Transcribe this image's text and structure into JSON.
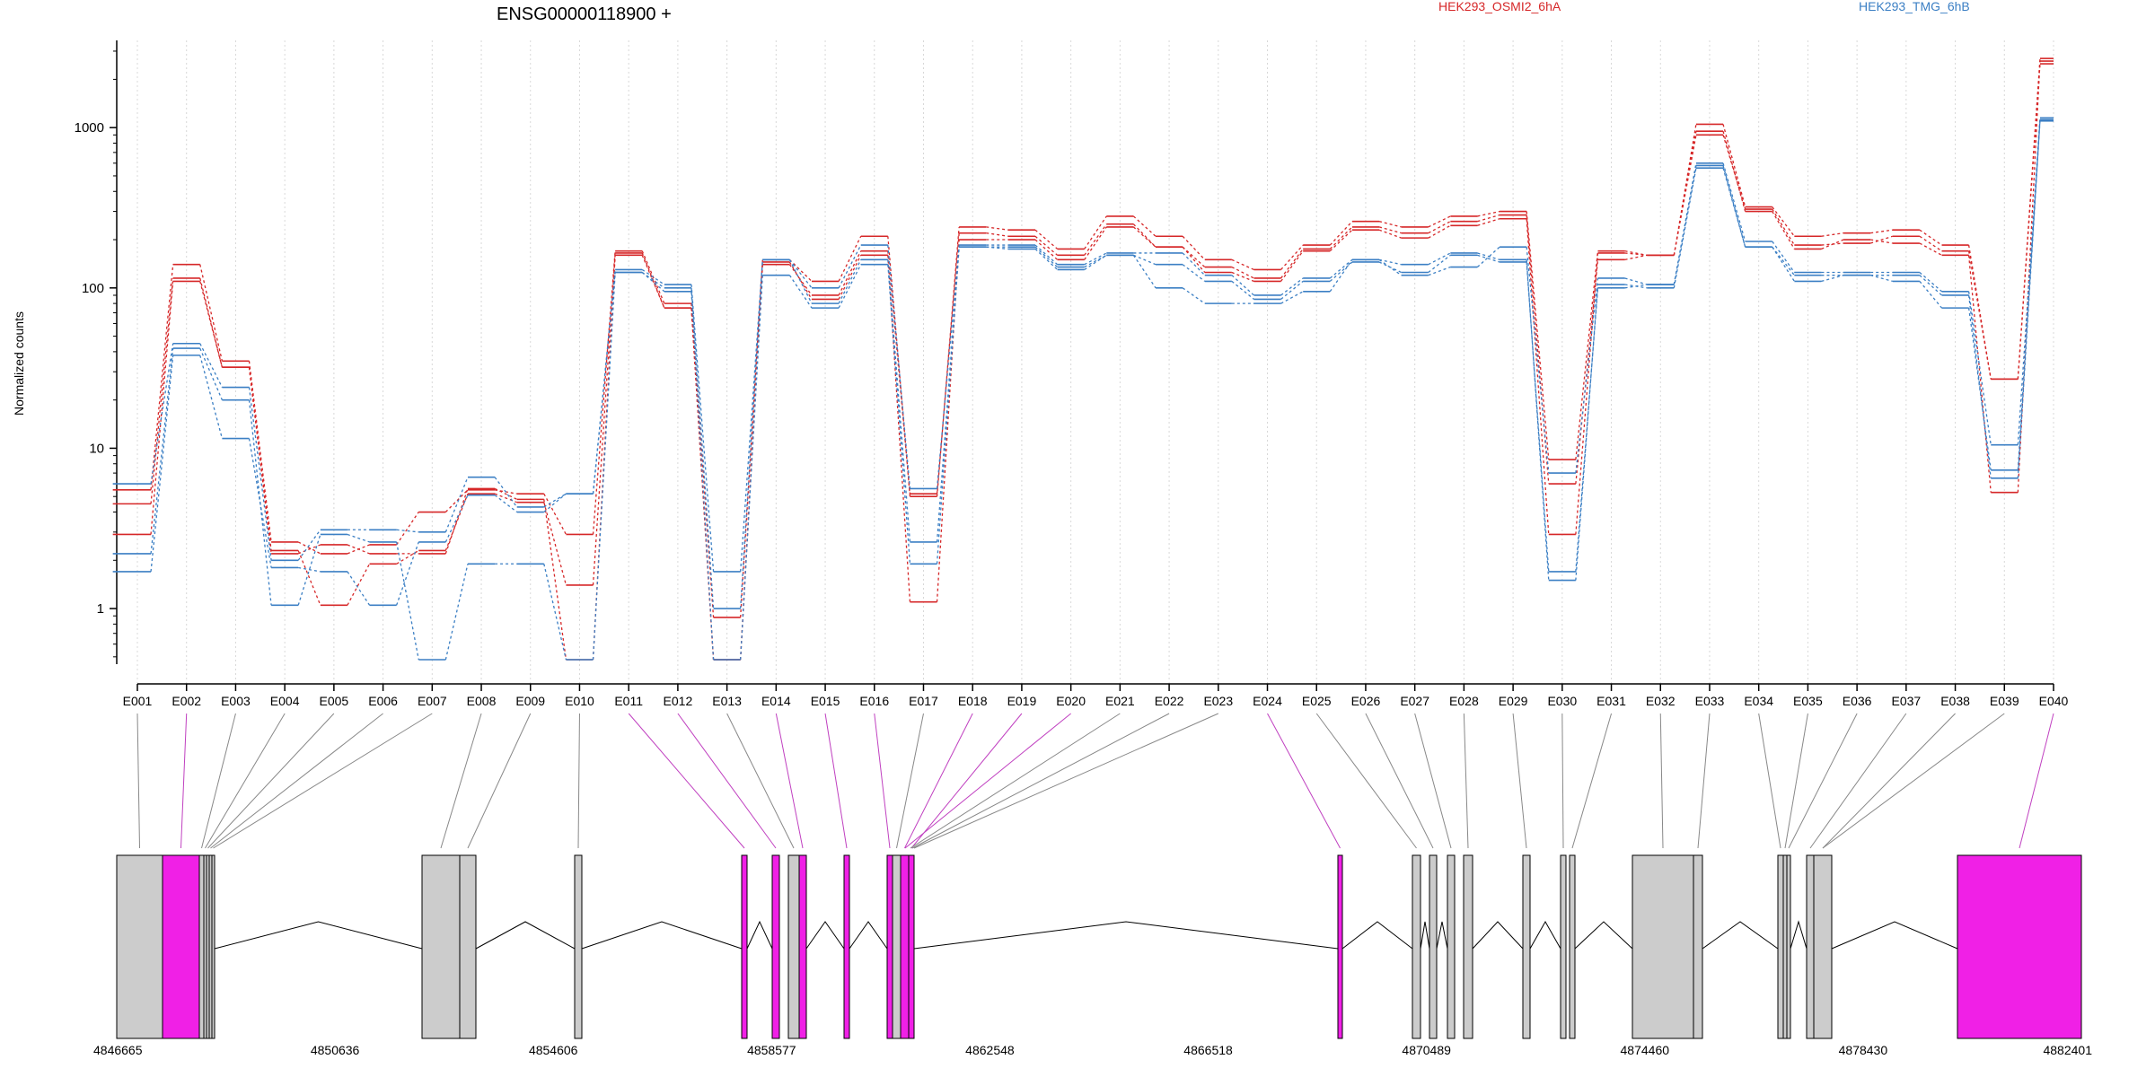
{
  "chart_data": {
    "type": "line",
    "title": "ENSG00000118900 +",
    "ylabel": "Normalized counts",
    "yscale": "log",
    "ylim": [
      0.45,
      3500
    ],
    "yticks": [
      1,
      10,
      100,
      1000
    ],
    "ytick_labels": [
      "1",
      "10",
      "100",
      "1000"
    ],
    "grid": "vertical dotted lines at each exon",
    "legend": [
      {
        "name": "HEK293_OSMI2_6hA",
        "color": "#d62728"
      },
      {
        "name": "HEK293_TMG_6hB",
        "color": "#3b7fc4"
      }
    ],
    "categories": [
      "E001",
      "E002",
      "E003",
      "E004",
      "E005",
      "E006",
      "E007",
      "E008",
      "E009",
      "E010",
      "E011",
      "E012",
      "E013",
      "E014",
      "E015",
      "E016",
      "E017",
      "E018",
      "E019",
      "E020",
      "E021",
      "E022",
      "E023",
      "E024",
      "E025",
      "E026",
      "E027",
      "E028",
      "E029",
      "E030",
      "E031",
      "E032",
      "E033",
      "E034",
      "E035",
      "E036",
      "E037",
      "E038",
      "E039",
      "E040"
    ],
    "highlighted_exons": [
      "E002",
      "E011",
      "E012",
      "E014",
      "E015",
      "E016",
      "E018",
      "E019",
      "E020",
      "E024",
      "E040"
    ],
    "series": [
      {
        "group": "HEK293_OSMI2_6hA",
        "values": [
          5.5,
          140,
          35,
          2.6,
          2.2,
          2.5,
          4,
          5.5,
          5.2,
          2.9,
          170,
          80,
          0.88,
          150,
          110,
          210,
          5,
          240,
          230,
          175,
          280,
          210,
          150,
          130,
          185,
          260,
          240,
          280,
          300,
          8.5,
          170,
          160,
          1050,
          320,
          210,
          220,
          230,
          185,
          27,
          2700
        ]
      },
      {
        "group": "HEK293_OSMI2_6hA",
        "values": [
          4.5,
          115,
          32,
          2.3,
          1.05,
          1.9,
          2.3,
          5.2,
          4.6,
          1.4,
          165,
          75,
          0.48,
          140,
          90,
          170,
          5.2,
          220,
          210,
          160,
          250,
          180,
          135,
          115,
          175,
          240,
          220,
          260,
          285,
          6,
          150,
          160,
          950,
          300,
          175,
          200,
          190,
          160,
          5.3,
          2600
        ]
      },
      {
        "group": "HEK293_OSMI2_6hA",
        "values": [
          2.9,
          110,
          32,
          2.2,
          2.5,
          2.2,
          2.2,
          5.6,
          4.8,
          0.48,
          160,
          75,
          0.48,
          145,
          85,
          160,
          1.1,
          200,
          200,
          150,
          240,
          180,
          125,
          110,
          170,
          230,
          205,
          245,
          270,
          2.9,
          165,
          160,
          900,
          310,
          185,
          190,
          210,
          170,
          27,
          2500
        ]
      },
      {
        "group": "HEK293_TMG_6hB",
        "values": [
          6,
          45,
          24,
          2,
          3.1,
          3.1,
          3,
          6.6,
          4.3,
          5.2,
          130,
          105,
          1.7,
          150,
          100,
          185,
          5.6,
          185,
          185,
          140,
          165,
          165,
          120,
          90,
          115,
          150,
          120,
          135,
          180,
          7,
          115,
          105,
          600,
          195,
          125,
          125,
          125,
          95,
          10.5,
          1150
        ]
      },
      {
        "group": "HEK293_TMG_6hB",
        "values": [
          2.2,
          42,
          20,
          1.05,
          2.9,
          2.6,
          0.48,
          1.9,
          1.9,
          0.48,
          125,
          95,
          0.48,
          120,
          75,
          140,
          1.9,
          180,
          175,
          130,
          160,
          140,
          110,
          85,
          110,
          145,
          125,
          160,
          145,
          1.7,
          100,
          105,
          580,
          180,
          120,
          120,
          120,
          90,
          6.5,
          1100
        ]
      },
      {
        "group": "HEK293_TMG_6hB",
        "values": [
          1.7,
          38,
          11.5,
          1.8,
          1.7,
          1.05,
          2.6,
          5.1,
          4,
          5.2,
          125,
          100,
          1,
          150,
          80,
          150,
          2.6,
          180,
          180,
          135,
          160,
          100,
          80,
          80,
          95,
          150,
          140,
          165,
          150,
          1.5,
          105,
          100,
          560,
          180,
          110,
          120,
          110,
          75,
          7.3,
          1120
        ]
      }
    ],
    "gene_model": {
      "x_tick_labels": [
        "4846665",
        "4850636",
        "4854606",
        "4858577",
        "4862548",
        "4866518",
        "4870489",
        "4874460",
        "4878430",
        "4882401"
      ]
    }
  }
}
